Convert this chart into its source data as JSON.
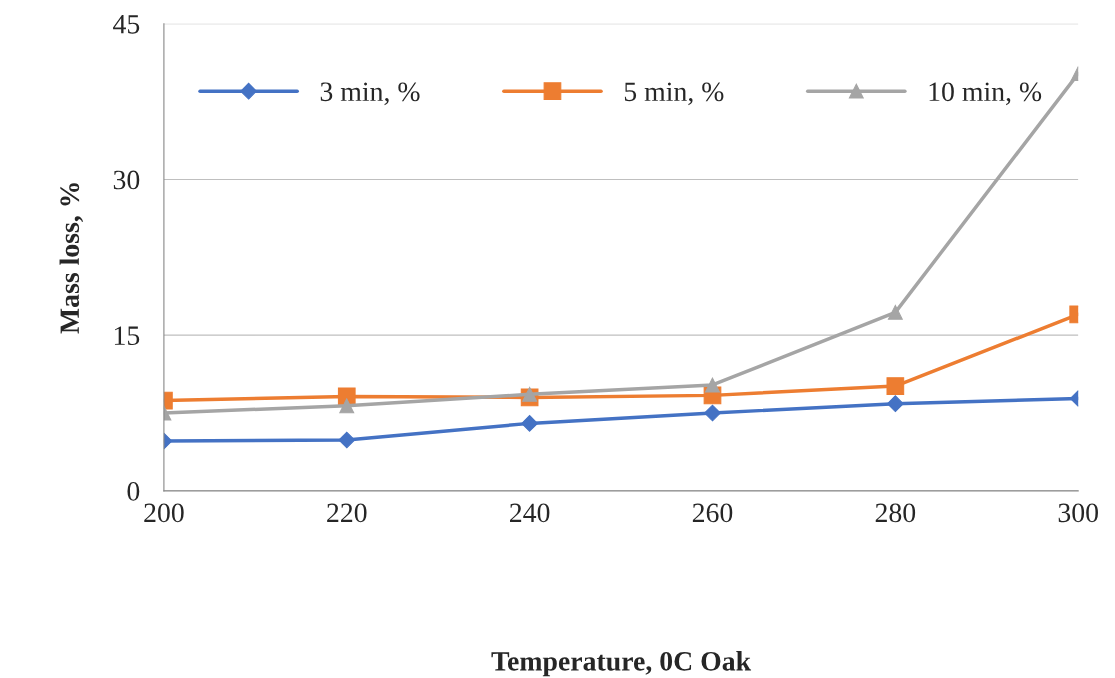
{
  "chart_data": {
    "type": "line",
    "xlabel": "Temperature, 0C Oak",
    "ylabel": "Mass loss, %",
    "x": [
      200,
      220,
      240,
      260,
      280,
      300
    ],
    "series": [
      {
        "name": "3 min, %",
        "color": "#4472c4",
        "marker": "diamond",
        "values": [
          4.8,
          4.9,
          6.5,
          7.5,
          8.4,
          8.9
        ]
      },
      {
        "name": "5 min, %",
        "color": "#ed7d31",
        "marker": "square",
        "values": [
          8.7,
          9.1,
          9.0,
          9.2,
          10.1,
          17.0
        ]
      },
      {
        "name": "10 min, %",
        "color": "#a5a5a5",
        "marker": "triangle",
        "values": [
          7.5,
          8.2,
          9.3,
          10.2,
          17.2,
          40.2
        ]
      }
    ],
    "xlim": [
      200,
      300
    ],
    "xticks": [
      200,
      220,
      240,
      260,
      280,
      300
    ],
    "ylim": [
      0,
      45
    ],
    "yticks": [
      0,
      15,
      30,
      45
    ],
    "grid": "y",
    "legend": "top",
    "line_style": "solid"
  }
}
